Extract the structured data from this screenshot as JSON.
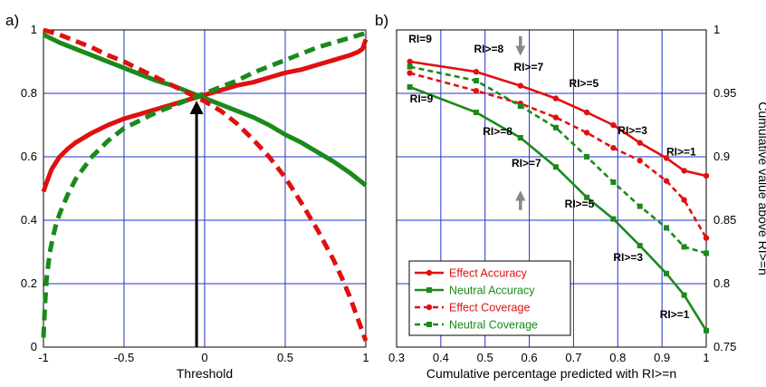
{
  "panel_labels": {
    "a": "a)",
    "b": "b)"
  },
  "chart_data": [
    {
      "type": "line",
      "panel": "a)",
      "xlabel": "Threshold",
      "ylabel": "",
      "xlim": [
        -1,
        1
      ],
      "ylim": [
        0,
        1
      ],
      "xticks": [
        "-1",
        "-0.5",
        "0",
        "0.5",
        "1"
      ],
      "yticks": [
        "0",
        "0.2",
        "0.4",
        "0.6",
        "0.8",
        "1"
      ],
      "grid": true,
      "series": [
        {
          "color": "#e01010",
          "style": "solid",
          "x": [
            -1,
            -0.98,
            -0.95,
            -0.9,
            -0.85,
            -0.8,
            -0.7,
            -0.6,
            -0.5,
            -0.4,
            -0.3,
            -0.2,
            -0.1,
            0,
            0.1,
            0.2,
            0.3,
            0.4,
            0.5,
            0.6,
            0.7,
            0.8,
            0.9,
            0.95,
            0.98,
            1
          ],
          "y": [
            0.49,
            0.52,
            0.56,
            0.6,
            0.625,
            0.645,
            0.675,
            0.7,
            0.72,
            0.735,
            0.75,
            0.765,
            0.78,
            0.795,
            0.81,
            0.825,
            0.835,
            0.85,
            0.865,
            0.875,
            0.89,
            0.905,
            0.92,
            0.93,
            0.94,
            0.97
          ]
        },
        {
          "color": "#1a8a1a",
          "style": "solid",
          "x": [
            -1,
            -0.9,
            -0.8,
            -0.7,
            -0.6,
            -0.5,
            -0.4,
            -0.3,
            -0.2,
            -0.1,
            0,
            0.1,
            0.2,
            0.3,
            0.4,
            0.5,
            0.6,
            0.7,
            0.8,
            0.9,
            1
          ],
          "y": [
            0.985,
            0.96,
            0.94,
            0.92,
            0.9,
            0.88,
            0.86,
            0.84,
            0.825,
            0.805,
            0.785,
            0.765,
            0.745,
            0.725,
            0.7,
            0.67,
            0.645,
            0.615,
            0.585,
            0.55,
            0.51
          ]
        },
        {
          "color": "#e01010",
          "style": "dashed",
          "x": [
            -1,
            -0.9,
            -0.8,
            -0.7,
            -0.6,
            -0.5,
            -0.4,
            -0.3,
            -0.2,
            -0.1,
            0,
            0.1,
            0.2,
            0.3,
            0.4,
            0.5,
            0.6,
            0.7,
            0.8,
            0.85,
            0.9,
            0.95,
            1
          ],
          "y": [
            1.0,
            0.985,
            0.965,
            0.945,
            0.92,
            0.9,
            0.875,
            0.85,
            0.825,
            0.8,
            0.775,
            0.745,
            0.705,
            0.655,
            0.6,
            0.535,
            0.455,
            0.37,
            0.275,
            0.22,
            0.16,
            0.09,
            0.02
          ]
        },
        {
          "color": "#1a8a1a",
          "style": "dashed",
          "x": [
            -1,
            -0.99,
            -0.98,
            -0.96,
            -0.94,
            -0.92,
            -0.9,
            -0.85,
            -0.8,
            -0.7,
            -0.6,
            -0.5,
            -0.4,
            -0.3,
            -0.2,
            -0.1,
            0,
            0.1,
            0.2,
            0.3,
            0.4,
            0.5,
            0.6,
            0.7,
            0.8,
            0.9,
            1
          ],
          "y": [
            0.03,
            0.14,
            0.22,
            0.3,
            0.35,
            0.39,
            0.42,
            0.48,
            0.53,
            0.6,
            0.65,
            0.69,
            0.715,
            0.74,
            0.76,
            0.78,
            0.8,
            0.82,
            0.84,
            0.865,
            0.885,
            0.905,
            0.925,
            0.945,
            0.96,
            0.975,
            0.99
          ]
        }
      ],
      "annotations": [
        {
          "type": "arrow",
          "x": -0.05,
          "y_from": 0,
          "y_to": 0.78,
          "color": "#000000"
        }
      ]
    },
    {
      "type": "line",
      "panel": "b)",
      "xlabel": "Cumulative percentage predicted with RI>=n",
      "ylabel": "Cumulative value above RI>=n",
      "xlim": [
        0.3,
        1.0
      ],
      "ylim": [
        0.75,
        1.0
      ],
      "xticks": [
        "0.3",
        "0.4",
        "0.5",
        "0.6",
        "0.7",
        "0.8",
        "0.9",
        "1"
      ],
      "yticks": [
        "0.75",
        "0.8",
        "0.85",
        "0.9",
        "0.95",
        "1"
      ],
      "grid": true,
      "legend_position": "bottom-left",
      "series": [
        {
          "name": "Effect Accuracy",
          "color": "#e01010",
          "style": "solid",
          "marker": "circle",
          "x": [
            0.33,
            0.48,
            0.58,
            0.66,
            0.73,
            0.79,
            0.85,
            0.91,
            0.95,
            1.0
          ],
          "y": [
            0.975,
            0.967,
            0.956,
            0.946,
            0.935,
            0.925,
            0.911,
            0.899,
            0.889,
            0.885
          ]
        },
        {
          "name": "Neutral Accuracy",
          "color": "#1a8a1a",
          "style": "solid",
          "marker": "square",
          "x": [
            0.33,
            0.48,
            0.58,
            0.66,
            0.73,
            0.79,
            0.85,
            0.91,
            0.95,
            1.0
          ],
          "y": [
            0.955,
            0.935,
            0.915,
            0.892,
            0.868,
            0.851,
            0.83,
            0.808,
            0.791,
            0.763
          ]
        },
        {
          "name": "Effect Coverage",
          "color": "#e01010",
          "style": "dashed",
          "marker": "circle",
          "x": [
            0.33,
            0.48,
            0.58,
            0.66,
            0.73,
            0.79,
            0.85,
            0.91,
            0.95,
            1.0
          ],
          "y": [
            0.966,
            0.952,
            0.942,
            0.931,
            0.919,
            0.907,
            0.897,
            0.881,
            0.866,
            0.836
          ]
        },
        {
          "name": "Neutral Coverage",
          "color": "#1a8a1a",
          "style": "dashed",
          "marker": "square",
          "x": [
            0.33,
            0.48,
            0.58,
            0.66,
            0.73,
            0.79,
            0.85,
            0.91,
            0.95,
            1.0
          ],
          "y": [
            0.971,
            0.96,
            0.94,
            0.923,
            0.9,
            0.88,
            0.861,
            0.844,
            0.829,
            0.824
          ]
        }
      ],
      "annotations": [
        {
          "text": "RI=9",
          "x": 0.327,
          "y": 0.99
        },
        {
          "text": "RI>=8",
          "x": 0.475,
          "y": 0.982
        },
        {
          "text": "RI>=7",
          "x": 0.565,
          "y": 0.968
        },
        {
          "text": "RI>=5",
          "x": 0.69,
          "y": 0.955
        },
        {
          "text": "RI>=3",
          "x": 0.8,
          "y": 0.918
        },
        {
          "text": "RI>=1",
          "x": 0.91,
          "y": 0.901
        },
        {
          "text": "RI=9",
          "x": 0.33,
          "y": 0.943
        },
        {
          "text": "RI>=8",
          "x": 0.495,
          "y": 0.917
        },
        {
          "text": "RI>=7",
          "x": 0.56,
          "y": 0.892
        },
        {
          "text": "RI>=5",
          "x": 0.68,
          "y": 0.86
        },
        {
          "text": "RI>=3",
          "x": 0.79,
          "y": 0.818
        },
        {
          "text": "RI>=1",
          "x": 0.895,
          "y": 0.773
        }
      ],
      "arrows": [
        {
          "x": 0.58,
          "y_from": 0.995,
          "y_to": 0.982,
          "color": "#888888"
        },
        {
          "x": 0.58,
          "y_from": 0.858,
          "y_to": 0.871,
          "color": "#888888"
        }
      ]
    }
  ]
}
